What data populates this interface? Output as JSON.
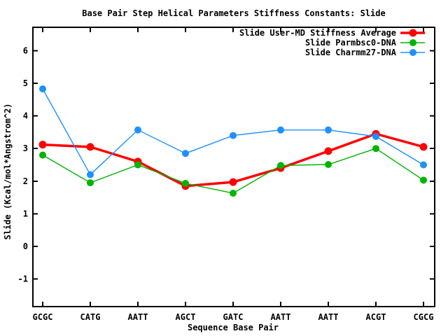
{
  "chart_data": {
    "type": "line",
    "title": "Base Pair Step Helical Parameters Stiffness Constants: Slide",
    "xlabel": "Sequence Base Pair",
    "ylabel": "Slide (Kcal/mol*Angstrom^2)",
    "categories": [
      "GCGC",
      "CATG",
      "AATT",
      "AGCT",
      "GATC",
      "AATT",
      "AATT",
      "ACGT",
      "CGCG"
    ],
    "series": [
      {
        "name": "Slide User-MD Stiffness Average",
        "color": "#ff0000",
        "thick": true,
        "marker": "filled-circle",
        "values": [
          3.12,
          3.05,
          2.6,
          1.85,
          1.97,
          2.4,
          2.92,
          3.45,
          3.05
        ]
      },
      {
        "name": "Slide Parmbsc0-DNA",
        "color": "#00b400",
        "thick": false,
        "marker": "filled-circle",
        "values": [
          2.8,
          1.95,
          2.5,
          1.93,
          1.63,
          2.48,
          2.51,
          3.0,
          2.03
        ]
      },
      {
        "name": "Slide Charmm27-DNA",
        "color": "#1e90ff",
        "thick": false,
        "marker": "filled-circle",
        "values": [
          4.83,
          2.2,
          3.57,
          2.85,
          3.4,
          3.57,
          3.57,
          3.37,
          2.5
        ]
      }
    ],
    "yticks": [
      -1,
      0,
      1,
      2,
      3,
      4,
      5,
      6
    ],
    "ylim": [
      -1.85,
      6.72
    ],
    "grid": false,
    "legend_position": "top-right-inside",
    "background_color": "#ffffff",
    "border_color": "#000000",
    "text_color": "#000000"
  }
}
